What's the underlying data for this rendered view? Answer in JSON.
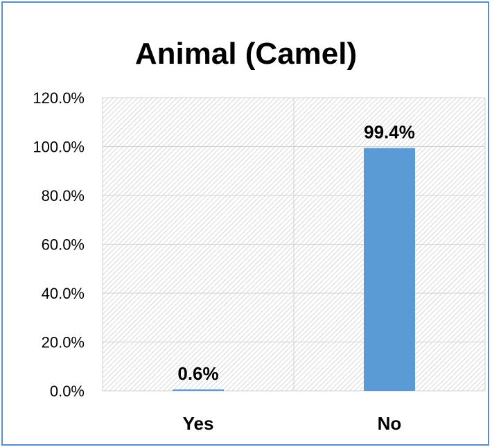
{
  "chart_data": {
    "type": "bar",
    "title": "Animal (Camel)",
    "xlabel": "",
    "ylabel": "",
    "categories": [
      "Yes",
      "No"
    ],
    "values": [
      0.6,
      99.4
    ],
    "data_labels": [
      "0.6%",
      "99.4%"
    ],
    "ylim": [
      0,
      120
    ],
    "yticks": [
      0,
      20,
      40,
      60,
      80,
      100,
      120
    ],
    "ytick_labels": [
      "0.0%",
      "20.0%",
      "40.0%",
      "60.0%",
      "80.0%",
      "100.0%",
      "120.0%"
    ],
    "grid": true,
    "legend": "none",
    "colors": {
      "bar": "#5b9bd5",
      "border": "#5b8ec9",
      "gridline": "#d0d0d0"
    }
  }
}
